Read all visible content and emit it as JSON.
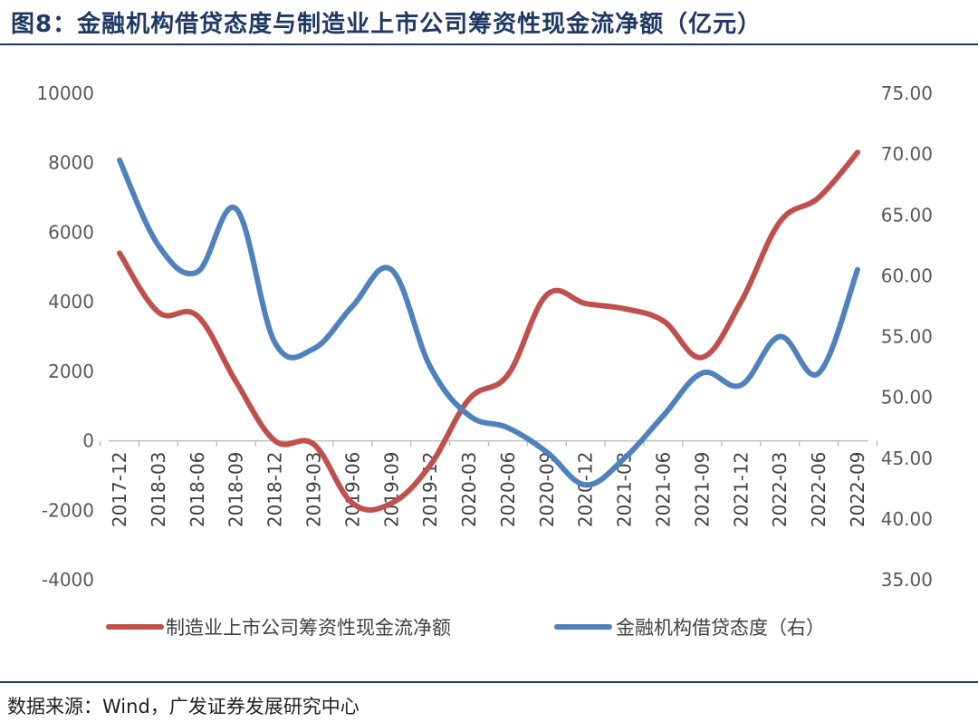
{
  "header": {
    "title": "图8：金融机构借贷态度与制造业上市公司筹资性现金流净额（亿元）"
  },
  "footer": {
    "source": "数据来源：Wind，广发证券发展研究中心"
  },
  "colors": {
    "series1": "#c0504d",
    "series2": "#4f81bd",
    "title": "#1f3864"
  },
  "chart_data": {
    "type": "line",
    "title": "金融机构借贷态度与制造业上市公司筹资性现金流净额（亿元）",
    "categories": [
      "2017-12",
      "2018-03",
      "2018-06",
      "2018-09",
      "2018-12",
      "2019-03",
      "2019-06",
      "2019-09",
      "2019-12",
      "2020-03",
      "2020-06",
      "2020-09",
      "2020-12",
      "2021-03",
      "2021-06",
      "2021-09",
      "2021-12",
      "2022-03",
      "2022-06",
      "2022-09"
    ],
    "y_left": {
      "min": -4000,
      "max": 10000,
      "ticks": [
        "10000",
        "8000",
        "6000",
        "4000",
        "2000",
        "0",
        "-2000",
        "-4000"
      ]
    },
    "y_right": {
      "min": 35,
      "max": 75,
      "ticks": [
        "75.00",
        "70.00",
        "65.00",
        "60.00",
        "55.00",
        "50.00",
        "45.00",
        "40.00",
        "35.00"
      ]
    },
    "series": [
      {
        "name": "制造业上市公司筹资性现金流净额",
        "axis": "left",
        "values": [
          5400,
          3700,
          3600,
          1700,
          0,
          -100,
          -1800,
          -1800,
          -700,
          1200,
          1900,
          4200,
          3950,
          3800,
          3450,
          2400,
          4000,
          6300,
          7000,
          8300
        ]
      },
      {
        "name": "金融机构借贷态度（右）",
        "axis": "right",
        "values": [
          69.5,
          62.5,
          60.3,
          65.5,
          54.5,
          54.0,
          57.5,
          60.5,
          52.5,
          48.5,
          47.5,
          45.5,
          42.8,
          45.0,
          48.5,
          52.0,
          51.0,
          55.0,
          52.0,
          60.5
        ]
      }
    ]
  }
}
